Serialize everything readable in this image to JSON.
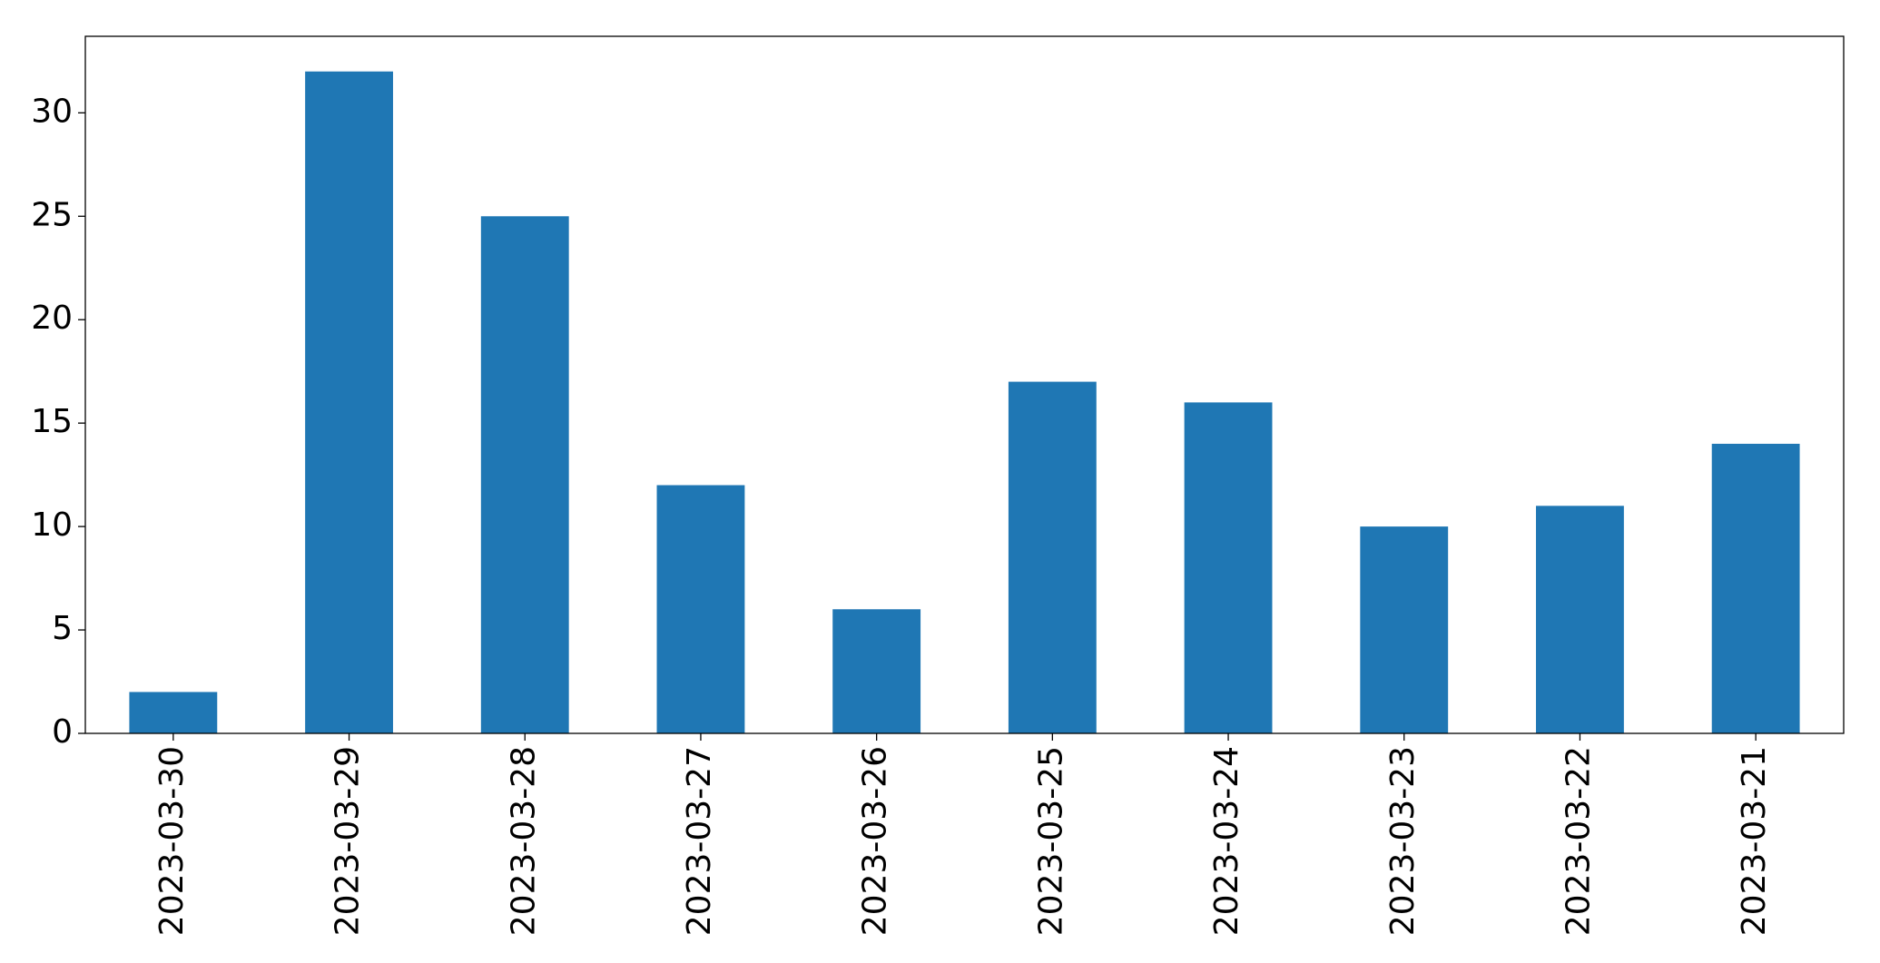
{
  "chart_data": {
    "type": "bar",
    "categories": [
      "2023-03-30",
      "2023-03-29",
      "2023-03-28",
      "2023-03-27",
      "2023-03-26",
      "2023-03-25",
      "2023-03-24",
      "2023-03-23",
      "2023-03-22",
      "2023-03-21"
    ],
    "values": [
      2,
      32,
      25,
      12,
      6,
      17,
      16,
      10,
      11,
      14
    ],
    "color": "#1f77b4",
    "ylim": [
      0,
      33.7
    ],
    "yticks": [
      0,
      5,
      10,
      15,
      20,
      25,
      30
    ],
    "grid": false
  }
}
